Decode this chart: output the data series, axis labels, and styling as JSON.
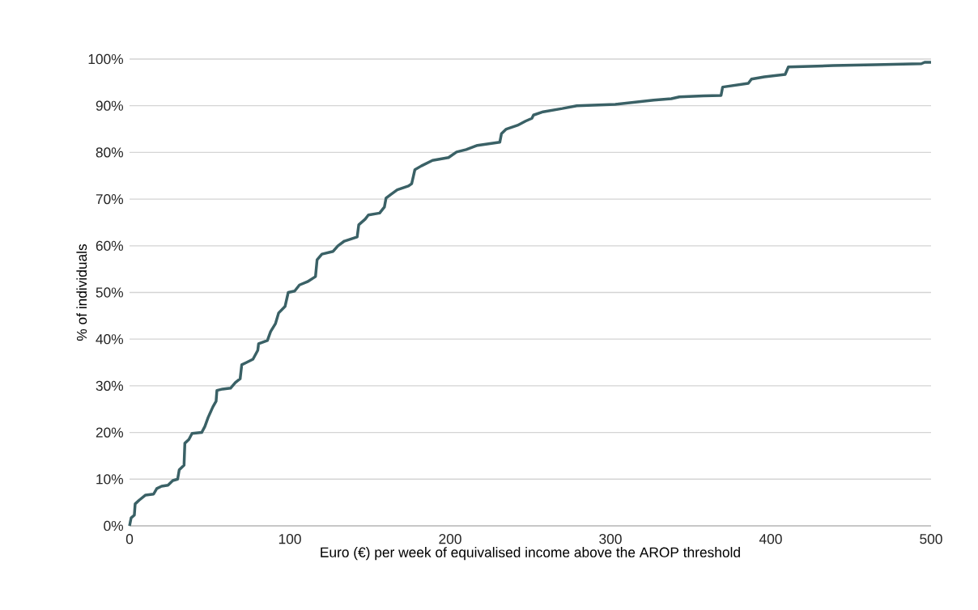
{
  "chart_data": {
    "type": "line",
    "xlabel": "Euro (€) per week of equivalised income above the AROP threshold",
    "ylabel": "% of individuals",
    "xlim": [
      0,
      500
    ],
    "xticks": [
      0,
      100,
      200,
      300,
      400,
      500
    ],
    "ylim": [
      0,
      100
    ],
    "yticks": [
      {
        "value": 0,
        "label": "0%"
      },
      {
        "value": 10,
        "label": "10%"
      },
      {
        "value": 20,
        "label": "20%"
      },
      {
        "value": 30,
        "label": "30%"
      },
      {
        "value": 40,
        "label": "40%"
      },
      {
        "value": 50,
        "label": "50%"
      },
      {
        "value": 60,
        "label": "60%"
      },
      {
        "value": 70,
        "label": "70%"
      },
      {
        "value": 80,
        "label": "80%"
      },
      {
        "value": 90,
        "label": "90%"
      },
      {
        "value": 100,
        "label": "100%"
      }
    ],
    "grid": "y",
    "marker": "none",
    "line_style": "solid",
    "series": [
      {
        "color": "#3a6166",
        "x": [
          0,
          1,
          3,
          3.5,
          6,
          10,
          15,
          17,
          20,
          24,
          27,
          30,
          31,
          34,
          34.5,
          37,
          39,
          45,
          47,
          49,
          52,
          54,
          54.5,
          58,
          63,
          66,
          69,
          70,
          73,
          77,
          80,
          80.5,
          86,
          88,
          91,
          93,
          97,
          99,
          103,
          106,
          111,
          116,
          117,
          120,
          127,
          130,
          134,
          142,
          143,
          147,
          149,
          156,
          159,
          160,
          163,
          167,
          174,
          176,
          178,
          182,
          189,
          199,
          204,
          210,
          217,
          231,
          232,
          235,
          242,
          247,
          251,
          252,
          258,
          270,
          279,
          303,
          327,
          338,
          343,
          358,
          369,
          370,
          386,
          388,
          396,
          409,
          411,
          439,
          465,
          494,
          496,
          500
        ],
        "values": [
          0,
          1.7,
          2.3,
          4.7,
          5.5,
          6.6,
          6.8,
          8,
          8.5,
          8.7,
          9.7,
          10,
          12,
          13,
          17.7,
          18.5,
          19.8,
          20,
          21.3,
          23.2,
          25.5,
          26.7,
          29,
          29.3,
          29.5,
          30.7,
          31.5,
          34.5,
          35,
          35.7,
          37.6,
          39,
          39.7,
          41.6,
          43.3,
          45.6,
          47,
          50,
          50.3,
          51.6,
          52.3,
          53.4,
          57,
          58.2,
          58.8,
          60,
          61,
          61.9,
          64.5,
          65.7,
          66.6,
          67,
          68.3,
          70.2,
          71,
          72,
          72.8,
          73.3,
          76.3,
          77.1,
          78.3,
          78.9,
          80.1,
          80.6,
          81.5,
          82.2,
          84,
          85,
          85.8,
          86.7,
          87.3,
          88,
          88.7,
          89.4,
          90,
          90.3,
          91.2,
          91.5,
          91.9,
          92.1,
          92.2,
          94,
          94.8,
          95.7,
          96.2,
          96.7,
          98.3,
          98.6,
          98.8,
          99,
          99.3,
          99.3
        ]
      }
    ]
  }
}
